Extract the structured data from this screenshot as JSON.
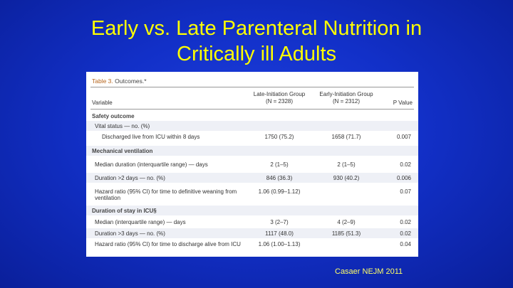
{
  "slide": {
    "title_line1": "Early vs. Late Parenteral Nutrition in",
    "title_line2": "Critically ill Adults",
    "citation": "Casaer NEJM 2011"
  },
  "table": {
    "caption_number": "Table 3.",
    "caption_title": "Outcomes.*",
    "headers": {
      "variable": "Variable",
      "late_line1": "Late-Initiation Group",
      "late_line2": "(N = 2328)",
      "early_line1": "Early-Initiation Group",
      "early_line2": "(N = 2312)",
      "p_value": "P Value"
    },
    "rows": [
      {
        "label": "Safety outcome",
        "late": "",
        "early": "",
        "p": ""
      },
      {
        "label": "Vital status — no. (%)",
        "late": "",
        "early": "",
        "p": ""
      },
      {
        "label": "Discharged live from ICU within 8 days",
        "late": "1750 (75.2)",
        "early": "1658 (71.7)",
        "p": "0.007"
      },
      {
        "label": "Mechanical ventilation",
        "late": "",
        "early": "",
        "p": ""
      },
      {
        "label": "Median duration (interquartile range) — days",
        "late": "2 (1–5)",
        "early": "2 (1–5)",
        "p": "0.02"
      },
      {
        "label": "Duration >2 days — no. (%)",
        "late": "846 (36.3)",
        "early": "930 (40.2)",
        "p": "0.006"
      },
      {
        "label": "Hazard ratio (95% CI) for time to definitive weaning from ventilation",
        "late": "1.06 (0.99–1.12)",
        "early": "",
        "p": "0.07"
      },
      {
        "label": "Duration of stay in ICU§",
        "late": "",
        "early": "",
        "p": ""
      },
      {
        "label": "Median (interquartile range) — days",
        "late": "3 (2–7)",
        "early": "4 (2–9)",
        "p": "0.02"
      },
      {
        "label": "Duration >3 days — no. (%)",
        "late": "1117 (48.0)",
        "early": "1185 (51.3)",
        "p": "0.02"
      },
      {
        "label": "Hazard ratio (95% CI) for time to discharge alive from ICU",
        "late": "1.06 (1.00–1.13)",
        "early": "",
        "p": "0.04"
      }
    ]
  }
}
